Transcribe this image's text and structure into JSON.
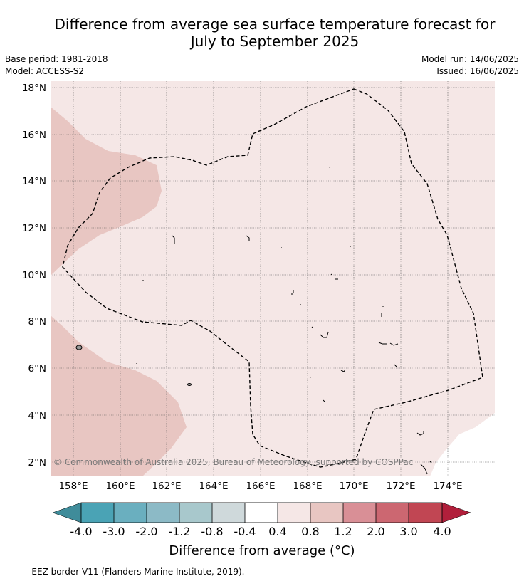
{
  "title": {
    "line1": "Difference from average sea surface temperature forecast for",
    "line2": "July to September 2025"
  },
  "meta": {
    "base_period": "Base period: 1981-2018",
    "model": "Model: ACCESS-S2",
    "model_run": "Model run: 14/06/2025",
    "issued": "Issued: 16/06/2025"
  },
  "map": {
    "lat_labels": [
      "18°N",
      "16°N",
      "14°N",
      "12°N",
      "10°N",
      "8°N",
      "6°N",
      "4°N",
      "2°N"
    ],
    "lon_labels": [
      "158°E",
      "160°E",
      "162°E",
      "164°E",
      "166°E",
      "168°E",
      "170°E",
      "172°E",
      "174°E"
    ],
    "copyright": "© Commonwealth of Australia 2025, Bureau of Meteorology, supported by COSPPac",
    "colors": {
      "background_anomaly": "#f5e7e6",
      "warmer_anomaly": "#e8c6c2",
      "land": "#999999",
      "eez_border": "#000000"
    }
  },
  "colorbar": {
    "labels": [
      "-4.0",
      "-3.0",
      "-2.0",
      "-1.2",
      "-0.8",
      "-0.4",
      "0.4",
      "0.8",
      "1.2",
      "2.0",
      "3.0",
      "4.0"
    ],
    "colors": [
      "#4aa3b5",
      "#6aafbf",
      "#8cbac6",
      "#a8c8cc",
      "#cfd9db",
      "#ffffff",
      "#f5e7e6",
      "#e8c6c2",
      "#d98f96",
      "#cc6771",
      "#c14653"
    ],
    "under_color": "#3f8c9a",
    "over_color": "#b11f3b",
    "title": "Difference from average (°C)"
  },
  "footer": "--  --  -- EEZ border V11 (Flanders Marine Institute, 2019)."
}
